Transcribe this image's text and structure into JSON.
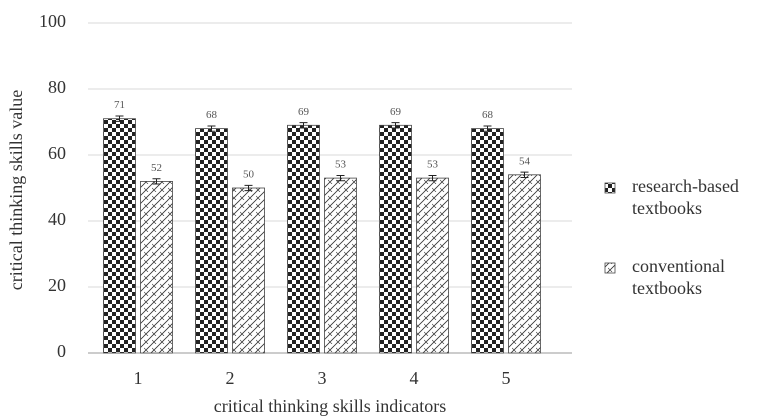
{
  "chart_data": {
    "type": "bar",
    "x_label": "critical thinking skills indicators",
    "y_label": "critical thinking skills value",
    "categories": [
      "1",
      "2",
      "3",
      "4",
      "5"
    ],
    "series": [
      {
        "name": "research-based textbooks",
        "color": "#222222",
        "pattern": "checker",
        "values": [
          71,
          68,
          69,
          69,
          68
        ],
        "errors": [
          0.8,
          0.8,
          0.8,
          0.8,
          0.8
        ]
      },
      {
        "name": "conventional textbooks",
        "color": "#333333",
        "pattern": "hatch",
        "values": [
          52,
          50,
          53,
          53,
          54
        ],
        "errors": [
          0.8,
          0.8,
          0.8,
          0.8,
          0.8
        ]
      }
    ],
    "ylim": [
      0,
      100
    ],
    "yticks": [
      0,
      20,
      40,
      60,
      80,
      100
    ],
    "grid": true,
    "legend": "right"
  }
}
